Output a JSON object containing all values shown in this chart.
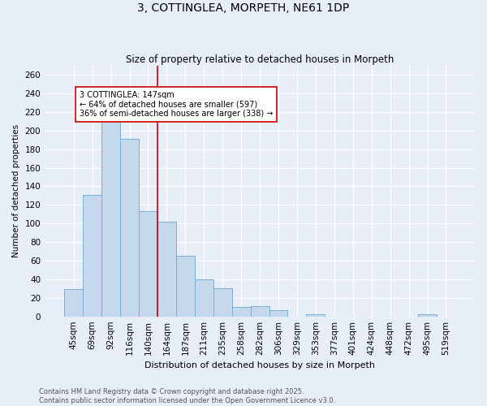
{
  "title": "3, COTTINGLEA, MORPETH, NE61 1DP",
  "subtitle": "Size of property relative to detached houses in Morpeth",
  "xlabel": "Distribution of detached houses by size in Morpeth",
  "ylabel": "Number of detached properties",
  "categories": [
    "45sqm",
    "69sqm",
    "92sqm",
    "116sqm",
    "140sqm",
    "164sqm",
    "187sqm",
    "211sqm",
    "235sqm",
    "258sqm",
    "282sqm",
    "306sqm",
    "329sqm",
    "353sqm",
    "377sqm",
    "401sqm",
    "424sqm",
    "448sqm",
    "472sqm",
    "495sqm",
    "519sqm"
  ],
  "values": [
    29,
    131,
    210,
    191,
    113,
    102,
    65,
    40,
    30,
    10,
    11,
    7,
    0,
    2,
    0,
    0,
    0,
    0,
    0,
    2,
    0
  ],
  "bar_color": "#c5d9ed",
  "bar_edge_color": "#7bafd4",
  "vline_x": 4.5,
  "vline_color": "#cc0000",
  "annotation_text": "3 COTTINGLEA: 147sqm\n← 64% of detached houses are smaller (597)\n36% of semi-detached houses are larger (338) →",
  "annotation_box_color": "#ffffff",
  "annotation_box_edgecolor": "#cc0000",
  "footer_line1": "Contains HM Land Registry data © Crown copyright and database right 2025.",
  "footer_line2": "Contains public sector information licensed under the Open Government Licence v3.0.",
  "background_color": "#e8eef8",
  "grid_color": "#ffffff",
  "ylim": [
    0,
    270
  ],
  "yticks": [
    0,
    20,
    40,
    60,
    80,
    100,
    120,
    140,
    160,
    180,
    200,
    220,
    240,
    260
  ]
}
